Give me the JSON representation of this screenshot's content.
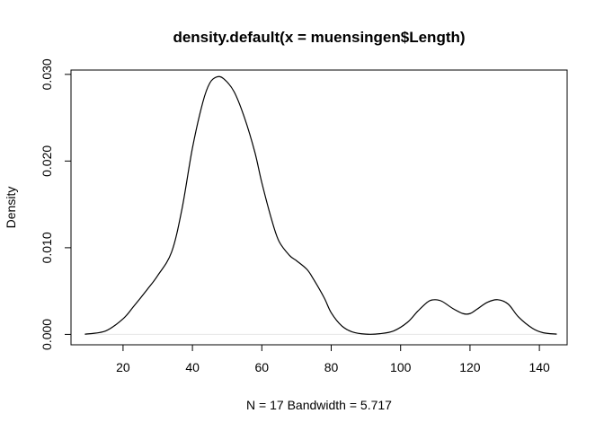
{
  "chart_data": {
    "type": "line",
    "title": "density.default(x = muensingen$Length)",
    "xlabel": "N = 17   Bandwidth = 5.717",
    "ylabel": "Density",
    "xlim": [
      5,
      148
    ],
    "ylim": [
      -0.0012,
      0.0305
    ],
    "x_ticks": [
      20,
      40,
      60,
      80,
      100,
      120,
      140
    ],
    "x_tick_labels": [
      "20",
      "40",
      "60",
      "80",
      "100",
      "120",
      "140"
    ],
    "y_ticks": [
      0.0,
      0.01,
      0.02,
      0.03
    ],
    "y_tick_labels": [
      "0.000",
      "0.010",
      "0.020",
      "0.030"
    ],
    "grid": false,
    "legend": "none",
    "series": [
      {
        "x": [
          9,
          15,
          20,
          23,
          27,
          30,
          34,
          37,
          40,
          43,
          45,
          47,
          49,
          52,
          55,
          58,
          60,
          63,
          65,
          68,
          70,
          73,
          75,
          78,
          80,
          83,
          86,
          90,
          94,
          98,
          102,
          105,
          108,
          110,
          112,
          115,
          118,
          120,
          122,
          125,
          128,
          131,
          134,
          138,
          141,
          145
        ],
        "y": [
          2e-05,
          0.0004,
          0.0018,
          0.0032,
          0.0052,
          0.0068,
          0.0095,
          0.0145,
          0.0215,
          0.0268,
          0.029,
          0.0297,
          0.0295,
          0.028,
          0.025,
          0.021,
          0.0175,
          0.013,
          0.0107,
          0.0091,
          0.0085,
          0.0075,
          0.0063,
          0.0042,
          0.0025,
          0.001,
          0.0003,
          3e-05,
          8e-05,
          0.0004,
          0.0014,
          0.0027,
          0.0038,
          0.004,
          0.0038,
          0.003,
          0.0024,
          0.0024,
          0.0029,
          0.0037,
          0.004,
          0.0035,
          0.002,
          0.0007,
          0.0002,
          3e-05
        ],
        "color": "#000000"
      }
    ],
    "baseline_color": "#e6e6e6"
  }
}
